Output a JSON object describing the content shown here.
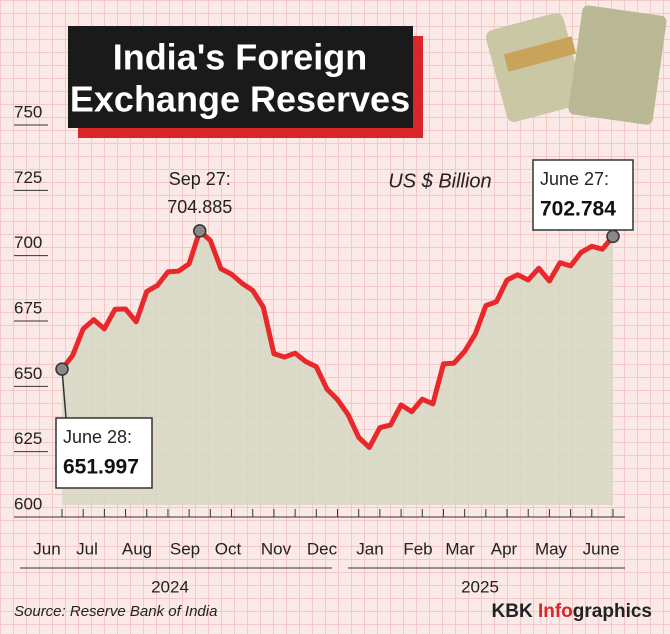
{
  "chart_data": {
    "type": "line",
    "title_lines": [
      "India's Foreign",
      "Exchange Reserves"
    ],
    "unit": "US $ Billion",
    "months": [
      "Jun",
      "Jul",
      "Aug",
      "Sep",
      "Oct",
      "Nov",
      "Dec",
      "Jan",
      "Feb",
      "Mar",
      "Apr",
      "May",
      "June"
    ],
    "years": [
      "2024",
      "2025"
    ],
    "values": [
      651.997,
      657.2,
      667.4,
      670.9,
      667.4,
      674.9,
      675.0,
      670.1,
      681.7,
      684.0,
      689.2,
      689.5,
      692.3,
      704.885,
      701.2,
      690.4,
      688.3,
      684.8,
      682.1,
      675.7,
      657.9,
      656.6,
      658.1,
      654.9,
      652.9,
      644.4,
      640.3,
      634.6,
      625.9,
      622.0,
      629.6,
      630.6,
      638.3,
      635.7,
      640.5,
      638.7,
      654.0,
      654.3,
      658.8,
      665.4,
      676.3,
      677.8,
      686.1,
      688.1,
      686.1,
      690.6,
      685.7,
      692.7,
      691.5,
      696.7,
      699.0,
      697.9,
      702.784
    ],
    "color": "#e8282b",
    "ylim": [
      600,
      750
    ],
    "yticks": [
      600,
      625,
      650,
      675,
      700,
      725,
      750
    ],
    "annotations": [
      {
        "label": "June 28:",
        "index": 0
      },
      {
        "label": "Sep 27:",
        "index": 13
      },
      {
        "label": "June 27:",
        "index": 52
      }
    ],
    "source": "Source: Reserve Bank of India",
    "brand": [
      "KBK ",
      "Info",
      "graphics"
    ]
  }
}
